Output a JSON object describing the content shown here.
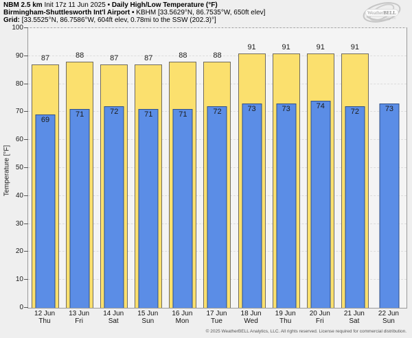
{
  "header": {
    "model": "NBM 2.5 km",
    "init": " Init 17z 11 Jun 2025 ",
    "sep": "•",
    "product": " Daily High/Low Temperature (°F)",
    "station": "Birmingham-Shuttlesworth Int'l Airport",
    "station_info": " KBHM [33.5629°N, 86.7535°W, 650ft elev]",
    "grid_label": "Grid:",
    "grid_info": " [33.5525°N, 86.7586°W, 604ft elev, 0.78mi to the SSW (202.3)°]"
  },
  "logo": {
    "brand_weather": "Weather",
    "brand_bell": "BELL",
    "sub": "Analytics LLC"
  },
  "chart_data": {
    "type": "bar",
    "title": "NBM 2.5 km Daily High/Low Temperature (°F) — KBHM",
    "ylabel": "Temperature [°F]",
    "ylim": [
      0,
      100
    ],
    "ytick_step": 10,
    "grid": "horizontal dashed",
    "legend": "none",
    "categories": [
      {
        "date": "12 Jun",
        "day": "Thu"
      },
      {
        "date": "13 Jun",
        "day": "Fri"
      },
      {
        "date": "14 Jun",
        "day": "Sat"
      },
      {
        "date": "15 Jun",
        "day": "Sun"
      },
      {
        "date": "16 Jun",
        "day": "Mon"
      },
      {
        "date": "17 Jun",
        "day": "Tue"
      },
      {
        "date": "18 Jun",
        "day": "Wed"
      },
      {
        "date": "19 Jun",
        "day": "Thu"
      },
      {
        "date": "20 Jun",
        "day": "Fri"
      },
      {
        "date": "21 Jun",
        "day": "Sat"
      },
      {
        "date": "22 Jun",
        "day": "Sun"
      }
    ],
    "series": [
      {
        "name": "Daily High",
        "color": "#fbe06e",
        "border": "#6f6a5e",
        "values": [
          87,
          88,
          87,
          87,
          88,
          88,
          91,
          91,
          91,
          91,
          null
        ]
      },
      {
        "name": "Daily Low",
        "color": "#5b8de6",
        "border": "#2f4f87",
        "values": [
          69,
          71,
          72,
          71,
          71,
          72,
          73,
          73,
          74,
          72,
          73
        ]
      }
    ]
  },
  "footer": "© 2025 WeatherBELL Analytics, LLC. All rights reserved. License required for commercial distribution."
}
